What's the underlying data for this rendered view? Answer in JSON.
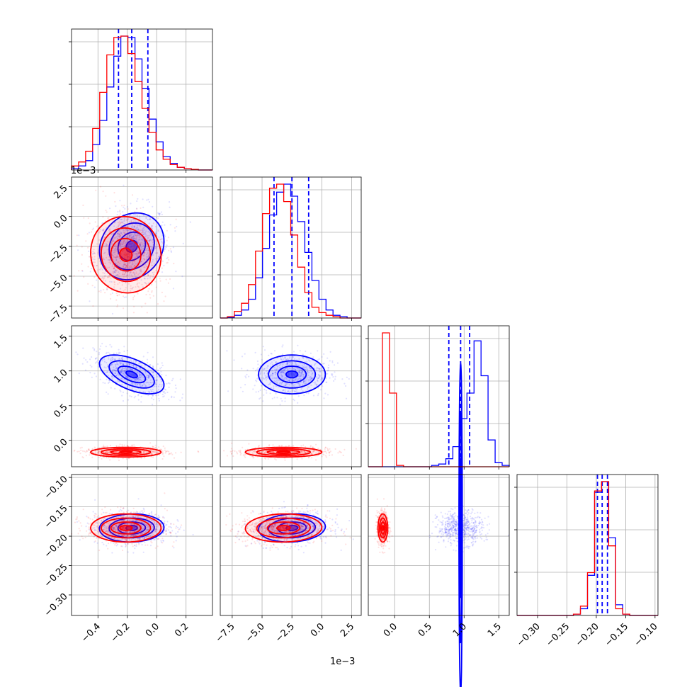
{
  "figure": {
    "type": "corner-plot",
    "colors": {
      "series_a": "#0000ff",
      "series_b": "#ff0000"
    }
  },
  "chart_data": {
    "type": "scatter",
    "description_kind": "corner",
    "n_params": 4,
    "param_ranges": [
      [
        -0.00058,
        0.00038
      ],
      [
        -0.0085,
        0.0033
      ],
      [
        -0.38,
        1.65
      ],
      [
        -0.335,
        -0.095
      ]
    ],
    "ticks": [
      [
        -0.0004,
        -0.0002,
        0.0,
        0.0002
      ],
      [
        -0.0075,
        -0.005,
        -0.0025,
        0.0,
        0.0025
      ],
      [
        0.0,
        0.5,
        1.0,
        1.5
      ],
      [
        -0.3,
        -0.25,
        -0.2,
        -0.15,
        -0.1
      ]
    ],
    "tick_labels": [
      [
        "−0.4",
        "−0.2",
        "0.0",
        "0.2"
      ],
      [
        "−7.5",
        "−5.0",
        "−2.5",
        "0.0",
        "2.5"
      ],
      [
        "0.0",
        "0.5",
        "1.0",
        "1.5"
      ],
      [
        "−0.30",
        "−0.25",
        "−0.20",
        "−0.15",
        "−0.10"
      ]
    ],
    "offset_labels": {
      "param0_x": "1e−3",
      "param1_y": "1e−3",
      "param1_x": "1e−3"
    },
    "series": [
      {
        "color": "#0000ff",
        "quantiles": [
          [
            -0.00026,
            -0.00017,
            -6e-05
          ],
          [
            -0.004,
            -0.0025,
            -0.0011
          ],
          [
            0.78,
            0.95,
            1.08
          ],
          [
            -0.198,
            -0.19,
            -0.181
          ]
        ],
        "means": [
          -0.00017,
          -0.0025,
          0.95,
          -0.186
        ],
        "sds": [
          0.00011,
          0.0014,
          0.14,
          0.012
        ],
        "corr": [
          [
            0,
            1,
            0.15
          ],
          [
            0,
            2,
            -0.55
          ],
          [
            1,
            2,
            0.0
          ],
          [
            0,
            3,
            0.05
          ],
          [
            1,
            3,
            0.1
          ],
          [
            2,
            3,
            0.0
          ]
        ],
        "hist": [
          [
            0.01,
            0.03,
            0.07,
            0.19,
            0.37,
            0.62,
            0.85,
            1.0,
            0.99,
            0.83,
            0.61,
            0.38,
            0.21,
            0.1,
            0.05,
            0.02,
            0.01,
            0.005,
            0,
            0
          ],
          [
            0,
            0.005,
            0.02,
            0.06,
            0.14,
            0.3,
            0.52,
            0.77,
            0.94,
            1.0,
            0.91,
            0.72,
            0.49,
            0.28,
            0.14,
            0.06,
            0.02,
            0.01,
            0,
            0
          ],
          [
            0,
            0,
            0,
            0,
            0,
            0,
            0,
            0,
            0,
            0.01,
            0.02,
            0.06,
            0.15,
            0.36,
            0.55,
            0.94,
            0.68,
            0.2,
            0.03,
            0.01
          ],
          [
            0,
            0,
            0,
            0,
            0,
            0,
            0,
            0,
            0.01,
            0.05,
            0.3,
            0.92,
            1.0,
            0.58,
            0.08,
            0.01,
            0,
            0,
            0,
            0
          ]
        ]
      },
      {
        "color": "#ff0000",
        "means": [
          -0.00021,
          -0.0032,
          -0.17,
          -0.186
        ],
        "sds": [
          0.00012,
          0.0016,
          0.035,
          0.012
        ],
        "corr": [
          [
            0,
            1,
            -0.05
          ],
          [
            0,
            2,
            0.0
          ],
          [
            1,
            2,
            0.0
          ],
          [
            0,
            3,
            0.0
          ],
          [
            1,
            3,
            0.05
          ],
          [
            2,
            3,
            0.0
          ]
        ],
        "hist": [
          [
            0.03,
            0.06,
            0.14,
            0.31,
            0.58,
            0.86,
            0.99,
            1.0,
            0.87,
            0.66,
            0.46,
            0.28,
            0.15,
            0.08,
            0.04,
            0.02,
            0.01,
            0.005,
            0,
            0
          ],
          [
            0,
            0.01,
            0.05,
            0.11,
            0.25,
            0.5,
            0.78,
            0.97,
            1.0,
            0.87,
            0.62,
            0.38,
            0.19,
            0.08,
            0.04,
            0.02,
            0.01,
            0,
            0,
            0
          ],
          [
            0,
            0,
            1.0,
            0.55,
            0.01,
            0,
            0,
            0,
            0,
            0,
            0,
            0,
            0,
            0,
            0,
            0,
            0,
            0,
            0,
            0
          ],
          [
            0,
            0,
            0,
            0,
            0,
            0,
            0,
            0,
            0.01,
            0.07,
            0.32,
            0.93,
            1.0,
            0.52,
            0.05,
            0.01,
            0,
            0,
            0,
            0
          ]
        ]
      }
    ],
    "grid": true,
    "legend": "none"
  }
}
